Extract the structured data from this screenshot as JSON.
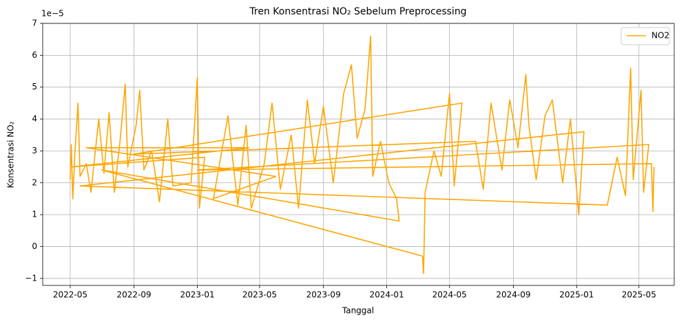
{
  "chart_data": {
    "type": "line",
    "title": "Tren Konsentrasi NO₂ Sebelum Preprocessing",
    "x_label": "Tanggal",
    "y_label": "Konsentrasi NO₂",
    "y_offset_label": "1e−5",
    "x": [
      "2022-05-01",
      "2022-05-03",
      "2022-05-06",
      "2022-05-10",
      "2022-05-16",
      "2022-05-20",
      "2022-06-01",
      "2022-06-10",
      "2022-06-25",
      "2022-07-05",
      "2022-07-15",
      "2022-07-25",
      "2022-08-05",
      "2022-08-15",
      "2022-08-20",
      "2022-09-05",
      "2022-09-12",
      "2022-09-20",
      "2022-10-05",
      "2022-10-20",
      "2022-11-05",
      "2022-11-15",
      "2022-12-20",
      "2023-01-01",
      "2023-01-05",
      "2023-01-15",
      "2022-05-05",
      "2023-04-10",
      "2022-06-01",
      "2023-06-01",
      "2023-02-01",
      "2023-03-01",
      "2023-03-20",
      "2023-04-05",
      "2023-04-15",
      "2023-05-10",
      "2023-05-25",
      "2023-06-10",
      "2023-07-01",
      "2023-07-15",
      "2023-08-01",
      "2023-08-15",
      "2023-09-01",
      "2023-09-20",
      "2023-10-10",
      "2023-10-25",
      "2023-11-05",
      "2023-11-20",
      "2023-12-01",
      "2023-12-05",
      "2023-12-20",
      "2024-01-05",
      "2024-01-20",
      "2024-01-25",
      "2022-07-01",
      "2024-03-10",
      "2024-03-12",
      "2024-03-15",
      "2024-04-01",
      "2024-04-15",
      "2024-05-01",
      "2024-05-10",
      "2024-05-25",
      "2022-09-01",
      "2024-06-20",
      "2024-07-05",
      "2024-07-20",
      "2024-08-10",
      "2024-08-25",
      "2024-09-10",
      "2024-09-25",
      "2024-10-01",
      "2024-10-15",
      "2024-11-01",
      "2024-11-15",
      "2024-12-05",
      "2024-12-20",
      "2025-01-05",
      "2025-01-15",
      "2022-05-20",
      "2025-03-01",
      "2025-03-20",
      "2025-04-05",
      "2025-04-15",
      "2025-04-20",
      "2025-05-05",
      "2025-05-10",
      "2025-05-20",
      "2023-01-01",
      "2025-05-25",
      "2025-05-28",
      "2025-05-30"
    ],
    "series": [
      {
        "name": "NO2",
        "color": "#ffa500",
        "values": [
          2.1,
          3.2,
          1.5,
          2.9,
          4.5,
          2.2,
          2.6,
          1.7,
          4.0,
          2.3,
          4.2,
          1.7,
          3.3,
          5.1,
          2.5,
          3.8,
          4.9,
          2.4,
          3.0,
          1.4,
          4.0,
          1.9,
          2.0,
          5.3,
          1.2,
          2.8,
          2.5,
          3.1,
          3.1,
          2.2,
          1.5,
          4.1,
          1.3,
          3.8,
          1.2,
          2.6,
          4.5,
          1.8,
          3.5,
          1.2,
          4.6,
          2.6,
          4.4,
          2.0,
          4.8,
          5.7,
          3.4,
          4.3,
          6.6,
          2.2,
          3.3,
          2.0,
          1.5,
          0.8,
          2.4,
          -0.3,
          -0.85,
          1.7,
          3.0,
          2.2,
          4.8,
          1.9,
          4.5,
          2.9,
          3.3,
          1.8,
          4.5,
          2.4,
          4.6,
          3.1,
          5.4,
          3.8,
          2.1,
          4.1,
          4.6,
          2.0,
          4.0,
          1.0,
          3.6,
          1.9,
          1.3,
          2.8,
          1.6,
          5.6,
          2.1,
          4.9,
          1.7,
          3.2,
          2.4,
          2.6,
          1.1,
          2.5
        ]
      }
    ],
    "xlim": [
      "2022-03-09",
      "2025-07-08"
    ],
    "xticks": [
      "2022-05",
      "2022-09",
      "2023-01",
      "2023-05",
      "2023-09",
      "2024-01",
      "2024-05",
      "2024-09",
      "2025-01",
      "2025-05"
    ],
    "ylim": [
      -1.22,
      7.0
    ],
    "yticks": [
      {
        "value": -1,
        "label": "−1"
      },
      0,
      1,
      2,
      3,
      4,
      5,
      6,
      7
    ],
    "grid": true,
    "legend": "upper right"
  }
}
